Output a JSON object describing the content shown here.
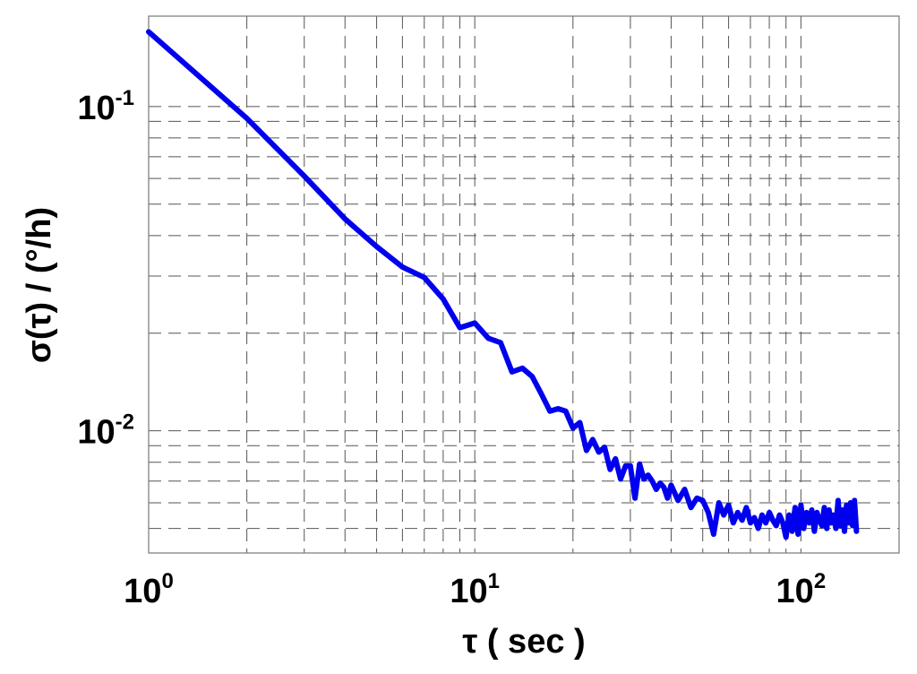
{
  "chart_data": {
    "type": "line",
    "xlabel": "τ ( sec )",
    "ylabel": "σ(τ) / (°/h)",
    "x_scale": "log",
    "y_scale": "log",
    "xlim": [
      1,
      200
    ],
    "ylim": [
      0.0042,
      0.19
    ],
    "grid": true,
    "x_ticks": [
      {
        "base": "10",
        "exp": "0",
        "value": 1
      },
      {
        "base": "10",
        "exp": "1",
        "value": 10
      },
      {
        "base": "10",
        "exp": "2",
        "value": 100
      }
    ],
    "y_ticks": [
      {
        "base": "10",
        "exp": "-1",
        "value": 0.1
      },
      {
        "base": "10",
        "exp": "-2",
        "value": 0.01
      }
    ],
    "series": [
      {
        "color": "#0000ee",
        "x": [
          1,
          2,
          3,
          4,
          5,
          6,
          7,
          8,
          9,
          10,
          11,
          12,
          13,
          14,
          15,
          16,
          17,
          18,
          19,
          20,
          21,
          22,
          23,
          24,
          25,
          26,
          27,
          28,
          29,
          30,
          31,
          32,
          33,
          34,
          35,
          36,
          37,
          38,
          39,
          40,
          42,
          44,
          46,
          48,
          50,
          52,
          54,
          56,
          58,
          60,
          62,
          64,
          66,
          68,
          70,
          72,
          74,
          76,
          78,
          80,
          82,
          84,
          86,
          88,
          90,
          92,
          94,
          96,
          98,
          100,
          102,
          104,
          106,
          108,
          110,
          112,
          114,
          116,
          118,
          120,
          122,
          124,
          126,
          128,
          130,
          132,
          134,
          136,
          138,
          140,
          142,
          144,
          146,
          148
        ],
        "y": [
          0.17,
          0.092,
          0.061,
          0.045,
          0.037,
          0.032,
          0.0297,
          0.0255,
          0.0208,
          0.0215,
          0.0193,
          0.0187,
          0.0152,
          0.0156,
          0.0147,
          0.013,
          0.0115,
          0.0117,
          0.0115,
          0.0102,
          0.0106,
          0.0087,
          0.0094,
          0.0086,
          0.0089,
          0.0076,
          0.0082,
          0.0071,
          0.0078,
          0.0078,
          0.0062,
          0.0079,
          0.0071,
          0.0073,
          0.007,
          0.0066,
          0.0069,
          0.0067,
          0.0062,
          0.0068,
          0.0061,
          0.0066,
          0.0058,
          0.0062,
          0.0061,
          0.0056,
          0.0048,
          0.006,
          0.0055,
          0.0059,
          0.0052,
          0.0056,
          0.0053,
          0.0058,
          0.0052,
          0.0054,
          0.005,
          0.0055,
          0.0052,
          0.0056,
          0.0053,
          0.0051,
          0.0055,
          0.0052,
          0.0047,
          0.0055,
          0.0049,
          0.0058,
          0.0048,
          0.0059,
          0.005,
          0.0056,
          0.0052,
          0.0057,
          0.0049,
          0.0056,
          0.0053,
          0.0051,
          0.0058,
          0.005,
          0.0057,
          0.0052,
          0.0055,
          0.005,
          0.0061,
          0.0051,
          0.0057,
          0.0049,
          0.0059,
          0.0052,
          0.006,
          0.0051,
          0.0061,
          0.0049
        ]
      }
    ]
  }
}
